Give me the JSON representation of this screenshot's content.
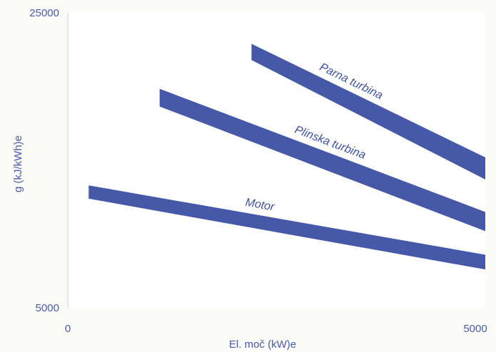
{
  "chart_data": {
    "type": "area",
    "xlabel": "El. moč (kW)e",
    "ylabel": "g  (kJ/kWh)e",
    "xlim": [
      0,
      5000
    ],
    "ylim": [
      5000,
      25000
    ],
    "x_tick_labels": [
      "0",
      "5000"
    ],
    "y_tick_labels": [
      "5000",
      "25000"
    ],
    "grid": false,
    "colors": {
      "band": "#4659a8",
      "axis": "#4a5aa8",
      "plot_bg": "#ffffff"
    },
    "series": [
      {
        "name": "Motor",
        "upper": [
          {
            "x": 250,
            "y": 13300
          },
          {
            "x": 5000,
            "y": 8600
          }
        ],
        "lower": [
          {
            "x": 250,
            "y": 12400
          },
          {
            "x": 5000,
            "y": 7600
          }
        ]
      },
      {
        "name": "Plinska turbina",
        "upper": [
          {
            "x": 1100,
            "y": 19850
          },
          {
            "x": 5000,
            "y": 11500
          }
        ],
        "lower": [
          {
            "x": 1100,
            "y": 18650
          },
          {
            "x": 5000,
            "y": 10200
          }
        ]
      },
      {
        "name": "Parna turbina",
        "upper": [
          {
            "x": 2200,
            "y": 22900
          },
          {
            "x": 5000,
            "y": 15200
          }
        ],
        "lower": [
          {
            "x": 2200,
            "y": 21800
          },
          {
            "x": 5000,
            "y": 13700
          }
        ]
      }
    ]
  }
}
